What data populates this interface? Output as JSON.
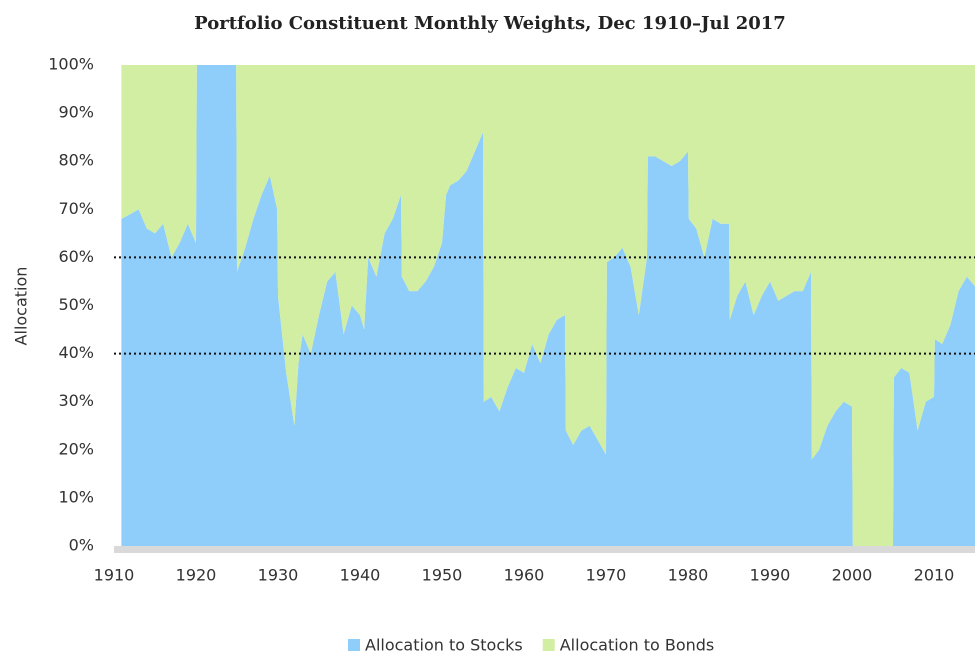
{
  "chart_data": {
    "type": "stacked_area",
    "title": "Portfolio Constituent Monthly Weights, Dec 1910–Jul 2017",
    "y_label": "Allocation",
    "x": [
      1910.9,
      1912,
      1913,
      1914,
      1915,
      1916,
      1917,
      1918,
      1919,
      1920,
      1920.1,
      1924.9,
      1925,
      1926,
      1927,
      1928,
      1929,
      1929.9,
      1930,
      1931,
      1932,
      1932.5,
      1933,
      1934,
      1935,
      1936,
      1937,
      1938,
      1939,
      1940,
      1940.5,
      1941,
      1942,
      1943,
      1944,
      1945,
      1945.1,
      1946,
      1947,
      1948,
      1949,
      1950,
      1950.5,
      1951,
      1952,
      1953,
      1954,
      1955,
      1955.1,
      1956,
      1957,
      1958,
      1959,
      1960,
      1961,
      1962,
      1963,
      1964,
      1965,
      1965.1,
      1966,
      1967,
      1968,
      1969,
      1970,
      1970.1,
      1971,
      1972,
      1973,
      1974,
      1975,
      1975.1,
      1976,
      1977,
      1978,
      1979,
      1980,
      1980.1,
      1981,
      1982,
      1983,
      1984,
      1985,
      1985.1,
      1986,
      1987,
      1988,
      1989,
      1990,
      1991,
      1992,
      1993,
      1994,
      1995,
      1995.1,
      1996,
      1997,
      1998,
      1999,
      2000,
      2000.1,
      2005,
      2005.1,
      2006,
      2007,
      2008,
      2009,
      2010,
      2010.1,
      2011,
      2012,
      2013,
      2014,
      2015
    ],
    "series": [
      {
        "name": "Allocation to Stocks",
        "color": "#8fcdfb",
        "values": [
          68,
          69,
          70,
          66,
          65,
          67,
          60,
          63,
          67,
          63,
          100,
          100,
          57,
          62,
          68,
          73,
          77,
          70,
          52,
          36,
          25,
          38,
          44,
          40,
          48,
          55,
          57,
          44,
          50,
          48,
          45,
          60,
          56,
          65,
          68,
          73,
          56,
          53,
          53,
          55,
          58,
          63,
          73,
          75,
          76,
          78,
          82,
          86,
          30,
          31,
          28,
          33,
          37,
          36,
          42,
          38,
          44,
          47,
          48,
          24,
          21,
          24,
          25,
          22,
          19,
          59,
          60,
          62,
          58,
          48,
          60,
          81,
          81,
          80,
          79,
          80,
          82,
          68,
          66,
          60,
          68,
          67,
          67,
          47,
          52,
          55,
          48,
          52,
          55,
          51,
          52,
          53,
          53,
          57,
          18,
          20,
          25,
          28,
          30,
          29,
          0,
          0,
          35,
          37,
          36,
          24,
          30,
          31,
          43,
          42,
          46,
          53,
          56,
          54
        ]
      },
      {
        "name": "Allocation to Bonds",
        "color": "#d2eea3",
        "values": [
          32,
          31,
          30,
          34,
          35,
          33,
          40,
          37,
          33,
          37,
          0,
          0,
          43,
          38,
          32,
          27,
          23,
          30,
          48,
          64,
          75,
          62,
          56,
          60,
          52,
          45,
          43,
          56,
          50,
          52,
          55,
          40,
          44,
          35,
          32,
          27,
          44,
          47,
          47,
          45,
          42,
          37,
          27,
          25,
          24,
          22,
          18,
          14,
          70,
          69,
          72,
          67,
          63,
          64,
          58,
          62,
          56,
          53,
          52,
          76,
          79,
          76,
          75,
          78,
          81,
          41,
          40,
          38,
          42,
          52,
          40,
          19,
          19,
          20,
          21,
          20,
          18,
          32,
          34,
          40,
          32,
          33,
          33,
          53,
          48,
          45,
          52,
          48,
          45,
          49,
          48,
          47,
          47,
          43,
          82,
          80,
          75,
          72,
          70,
          71,
          100,
          100,
          65,
          63,
          64,
          76,
          70,
          69,
          57,
          58,
          54,
          47,
          44,
          46
        ]
      }
    ],
    "xlim": [
      1910,
      2015
    ],
    "xticks": [
      1910,
      1920,
      1930,
      1940,
      1950,
      1960,
      1970,
      1980,
      1990,
      2000,
      2010
    ],
    "ylim": [
      0,
      100
    ],
    "yticks": [
      {
        "value": 0,
        "label": "0%"
      },
      {
        "value": 10,
        "label": "10%"
      },
      {
        "value": 20,
        "label": "20%"
      },
      {
        "value": 30,
        "label": "30%"
      },
      {
        "value": 40,
        "label": "40%"
      },
      {
        "value": 50,
        "label": "50%"
      },
      {
        "value": 60,
        "label": "60%"
      },
      {
        "value": 70,
        "label": "70%"
      },
      {
        "value": 80,
        "label": "80%"
      },
      {
        "value": 90,
        "label": "90%"
      },
      {
        "value": 100,
        "label": "100%"
      }
    ],
    "reference_lines": [
      40,
      60
    ],
    "legend": "bottom"
  }
}
